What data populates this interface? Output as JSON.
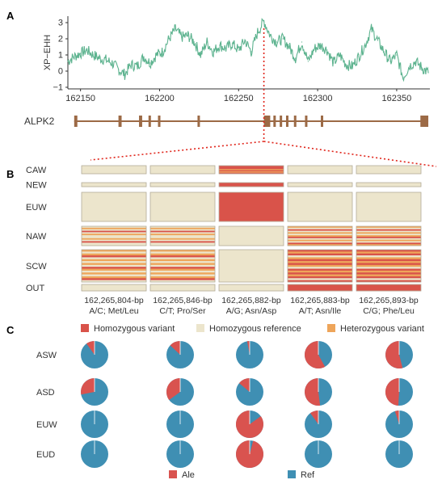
{
  "colors": {
    "line": "#5db38f",
    "gene": "#9c6a46",
    "hom_variant": "#d9534a",
    "hom_reference": "#ece5cc",
    "het_variant": "#eea55a",
    "ale": "#d9534f",
    "ref": "#3f8fb3",
    "connector": "#e0251b",
    "cell_border": "#b3ab98"
  },
  "panel_a": {
    "letter": "A",
    "gene_label": "ALPK2",
    "exon_ranges": [
      [
        162146,
        162148
      ],
      [
        162174,
        162176
      ],
      [
        162187,
        162189
      ],
      [
        162193,
        162194
      ],
      [
        162199,
        162200
      ],
      [
        162224,
        162225
      ],
      [
        162266,
        162270
      ],
      [
        162272,
        162273
      ],
      [
        162276,
        162277
      ],
      [
        162280,
        162281
      ],
      [
        162285,
        162286
      ],
      [
        162292,
        162293
      ],
      [
        162302,
        162303
      ],
      [
        162365,
        162370
      ]
    ]
  },
  "chart_data": [
    {
      "type": "line",
      "title": "",
      "xlabel": "",
      "ylabel": "XP−EHH",
      "xlim": [
        162142,
        162371
      ],
      "ylim": [
        -1.1,
        3.4
      ],
      "xticks": [
        "162150",
        "162200",
        "162250",
        "162300",
        "162350"
      ],
      "yticks": [
        "3",
        "2",
        "1",
        "0",
        "−1"
      ],
      "highlight_x": 162266,
      "series": [
        {
          "x": [
            162142,
            162146,
            162150,
            162154,
            162158,
            162162,
            162166,
            162170,
            162174,
            162178,
            162182,
            162186,
            162190,
            162194,
            162198,
            162202,
            162206,
            162210,
            162214,
            162218,
            162222,
            162226,
            162230,
            162234,
            162238,
            162242,
            162246,
            162250,
            162254,
            162258,
            162262,
            162266,
            162270,
            162274,
            162278,
            162282,
            162286,
            162290,
            162294,
            162298,
            162302,
            162306,
            162310,
            162314,
            162318,
            162322,
            162326,
            162330,
            162334,
            162338,
            162342,
            162346,
            162350,
            162354,
            162358,
            162362,
            162366,
            162370
          ],
          "values": [
            0.6,
            0.9,
            1.1,
            1.3,
            1.0,
            0.8,
            0.7,
            0.5,
            0.1,
            -0.2,
            0.4,
            0.3,
            0.9,
            0.5,
            1.0,
            1.2,
            2.0,
            2.6,
            2.1,
            2.2,
            1.8,
            1.0,
            1.8,
            1.2,
            1.6,
            1.4,
            1.7,
            1.3,
            1.9,
            1.2,
            2.4,
            3.1,
            2.2,
            1.8,
            2.0,
            1.5,
            0.8,
            1.8,
            0.6,
            1.4,
            1.6,
            1.3,
            0.5,
            1.0,
            0.4,
            0.3,
            0.9,
            1.6,
            2.6,
            1.9,
            1.2,
            0.6,
            1.0,
            -0.4,
            0.3,
            0.6,
            0.2,
            -0.1
          ]
        }
      ]
    },
    {
      "type": "heatmap",
      "title": "",
      "rows": [
        "CAW",
        "NEW",
        "EUW",
        "NAW",
        "SCW",
        "OUT"
      ],
      "columns": [
        "162,265,804-bp\nA/C; Met/Leu",
        "162,265,846-bp\nC/T; Pro/Ser",
        "162,265,882-bp\nA/G; Asn/Asp",
        "162,265,883-bp\nA/T; Asn/Ile",
        "162,265,893-bp\nC/G; Phe/Leu"
      ],
      "legend": [
        "Homozygous variant",
        "Homozygous reference",
        "Heterozygous variant"
      ],
      "cells": [
        [
          [
            "R"
          ],
          [
            "R"
          ],
          [
            "V",
            "V",
            "V",
            "H",
            "V",
            "H",
            "V"
          ],
          [
            "R"
          ],
          [
            "R"
          ]
        ],
        [
          [
            "R"
          ],
          [
            "R"
          ],
          [
            "V"
          ],
          [
            "R"
          ],
          [
            "R"
          ]
        ],
        [
          [
            "R"
          ],
          [
            "R"
          ],
          [
            "V"
          ],
          [
            "R"
          ],
          [
            "R"
          ]
        ],
        [
          [
            "R",
            "H",
            "R",
            "V",
            "R",
            "H",
            "R",
            "R",
            "H",
            "R",
            "V",
            "R",
            "R"
          ],
          [
            "R",
            "H",
            "R",
            "V",
            "R",
            "H",
            "R",
            "R",
            "H",
            "R",
            "V",
            "R",
            "R"
          ],
          [
            "R"
          ],
          [
            "H",
            "R",
            "V",
            "R",
            "H",
            "R",
            "H",
            "V",
            "R",
            "H",
            "R",
            "V",
            "H"
          ],
          [
            "H",
            "R",
            "V",
            "R",
            "H",
            "R",
            "H",
            "V",
            "R",
            "H",
            "R",
            "V",
            "H"
          ]
        ],
        [
          [
            "H",
            "R",
            "H",
            "V",
            "R",
            "H",
            "R",
            "H",
            "R",
            "V",
            "H",
            "R",
            "H",
            "R",
            "H",
            "V",
            "R"
          ],
          [
            "H",
            "R",
            "H",
            "V",
            "R",
            "H",
            "R",
            "H",
            "R",
            "V",
            "H",
            "R",
            "H",
            "R",
            "H",
            "V",
            "R"
          ],
          [
            "R"
          ],
          [
            "V",
            "H",
            "V",
            "R",
            "H",
            "V",
            "H",
            "V",
            "H",
            "R",
            "V",
            "H",
            "V",
            "H",
            "V",
            "R",
            "V"
          ],
          [
            "V",
            "H",
            "V",
            "R",
            "H",
            "V",
            "H",
            "V",
            "H",
            "R",
            "V",
            "H",
            "V",
            "H",
            "V",
            "R",
            "V"
          ]
        ],
        [
          [
            "R"
          ],
          [
            "R"
          ],
          [
            "R"
          ],
          [
            "V"
          ],
          [
            "V"
          ]
        ]
      ]
    },
    {
      "type": "pie",
      "title": "",
      "rows": [
        "ASW",
        "ASD",
        "EUW",
        "EUD"
      ],
      "legend": [
        "Ale",
        "Ref"
      ],
      "ale_fraction": [
        [
          0.1,
          0.13,
          0.03,
          0.58,
          0.54
        ],
        [
          0.28,
          0.35,
          0.14,
          0.52,
          0.49
        ],
        [
          0.0,
          0.0,
          0.85,
          0.1,
          0.05
        ],
        [
          0.0,
          0.0,
          0.96,
          0.0,
          0.0
        ]
      ]
    }
  ]
}
